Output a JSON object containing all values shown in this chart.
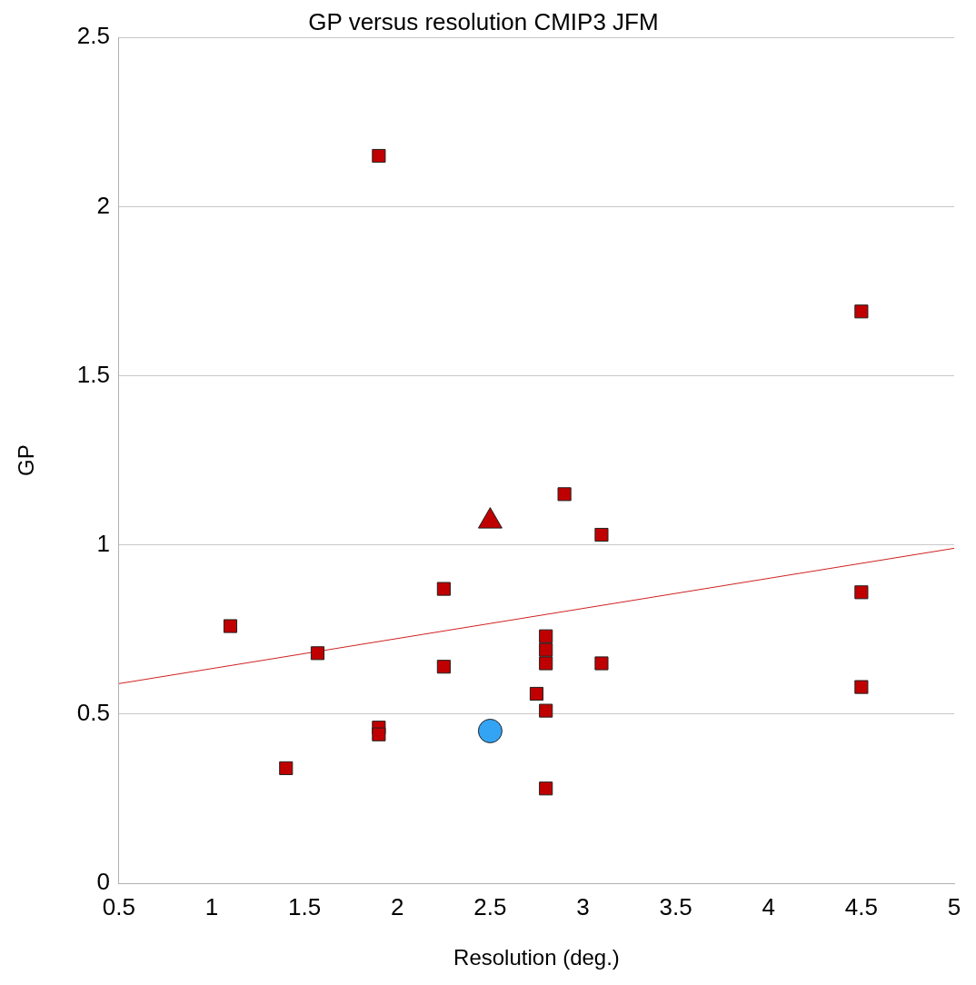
{
  "chart_data": {
    "type": "scatter",
    "title": "GP versus resolution CMIP3 JFM",
    "xlabel": "Resolution (deg.)",
    "ylabel": "GP",
    "xlim": [
      0.5,
      5
    ],
    "xticks": [
      0.5,
      1,
      1.5,
      2,
      2.5,
      3,
      3.5,
      4,
      4.5,
      5
    ],
    "ylim": [
      0,
      2.5
    ],
    "yticks": [
      0,
      0.5,
      1,
      1.5,
      2,
      2.5
    ],
    "grid": "y",
    "legend": false,
    "series": [
      {
        "type": "scatter",
        "marker": "square",
        "color": "#c00000",
        "x": [
          1.1,
          1.9,
          4.5,
          2.9,
          3.1,
          2.25,
          4.5,
          1.57,
          2.25,
          2.8,
          2.8,
          2.8,
          3.1,
          4.5,
          2.75,
          2.8,
          1.9,
          1.9,
          1.4,
          2.8
        ],
        "values": [
          0.76,
          2.15,
          1.69,
          1.15,
          1.03,
          0.87,
          0.86,
          0.68,
          0.64,
          0.73,
          0.69,
          0.65,
          0.65,
          0.58,
          0.56,
          0.51,
          0.46,
          0.44,
          0.34,
          0.28
        ]
      },
      {
        "type": "scatter",
        "marker": "triangle",
        "color": "#c00000",
        "x": [
          2.5
        ],
        "values": [
          1.07
        ]
      },
      {
        "type": "scatter",
        "marker": "circle",
        "color": "#33a4f4",
        "x": [
          2.5
        ],
        "values": [
          0.45
        ]
      },
      {
        "type": "line",
        "marker": "none",
        "color": "#d02020",
        "x": [
          0.5,
          5
        ],
        "values": [
          0.59,
          0.99
        ]
      }
    ]
  }
}
